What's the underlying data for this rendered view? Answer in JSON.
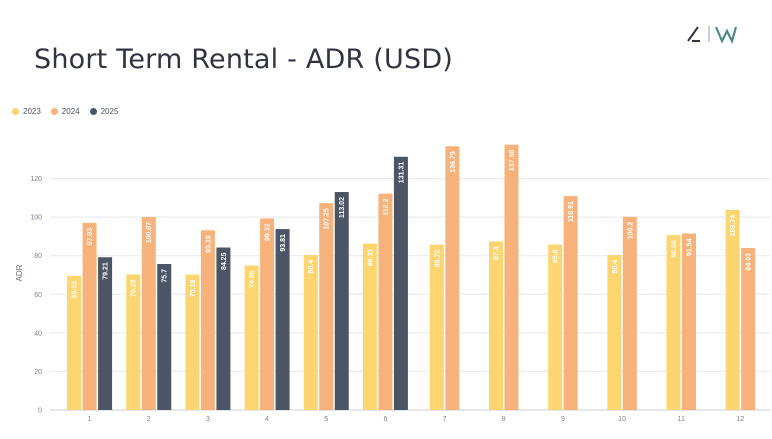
{
  "header": {
    "title": "Short Term Rental - ADR (USD)"
  },
  "colors": {
    "s2023": "#fcd571",
    "s2024": "#f6b27a",
    "s2025": "#4b5566",
    "grid": "#e6e8ec",
    "text": "#2f3440"
  },
  "chart_data": {
    "type": "bar",
    "title": "Short Term Rental - ADR (USD)",
    "xlabel": "",
    "ylabel": "ADR",
    "ylim": [
      0,
      140
    ],
    "yticks": [
      0,
      20,
      40,
      60,
      80,
      100,
      120
    ],
    "grid": true,
    "legend_position": "top-left",
    "categories": [
      "1",
      "2",
      "3",
      "4",
      "5",
      "6",
      "7",
      "8",
      "9",
      "10",
      "11",
      "12"
    ],
    "series": [
      {
        "name": "2023",
        "color": "#fcd571",
        "values": [
          69.53,
          70.29,
          70.19,
          74.96,
          80.4,
          86.31,
          85.72,
          87.4,
          85.8,
          80.4,
          90.68,
          103.74
        ],
        "labels": [
          "69.53",
          "70.29",
          "70.19",
          "74.96",
          "80.4",
          "86.31",
          "85.72",
          "87.4",
          "85.8",
          "80.4",
          "90.68",
          "103.74"
        ]
      },
      {
        "name": "2024",
        "color": "#f6b27a",
        "values": [
          97.03,
          100.07,
          93.19,
          99.32,
          107.25,
          112.2,
          136.75,
          137.58,
          110.91,
          100.2,
          91.54,
          84.03
        ],
        "labels": [
          "97.03",
          "100.07",
          "93.19",
          "99.32",
          "107.25",
          "112.2",
          "136.75",
          "137.58",
          "110.91",
          "100.2",
          "91.54",
          "84.03"
        ]
      },
      {
        "name": "2025",
        "color": "#4b5566",
        "values": [
          79.21,
          75.7,
          84.25,
          93.81,
          113.02,
          131.31,
          null,
          null,
          null,
          null,
          null,
          null
        ],
        "labels": [
          "79.21",
          "75.7",
          "84.25",
          "93.81",
          "113.02",
          "131.31",
          "",
          "",
          "",
          "",
          "",
          ""
        ]
      }
    ]
  }
}
